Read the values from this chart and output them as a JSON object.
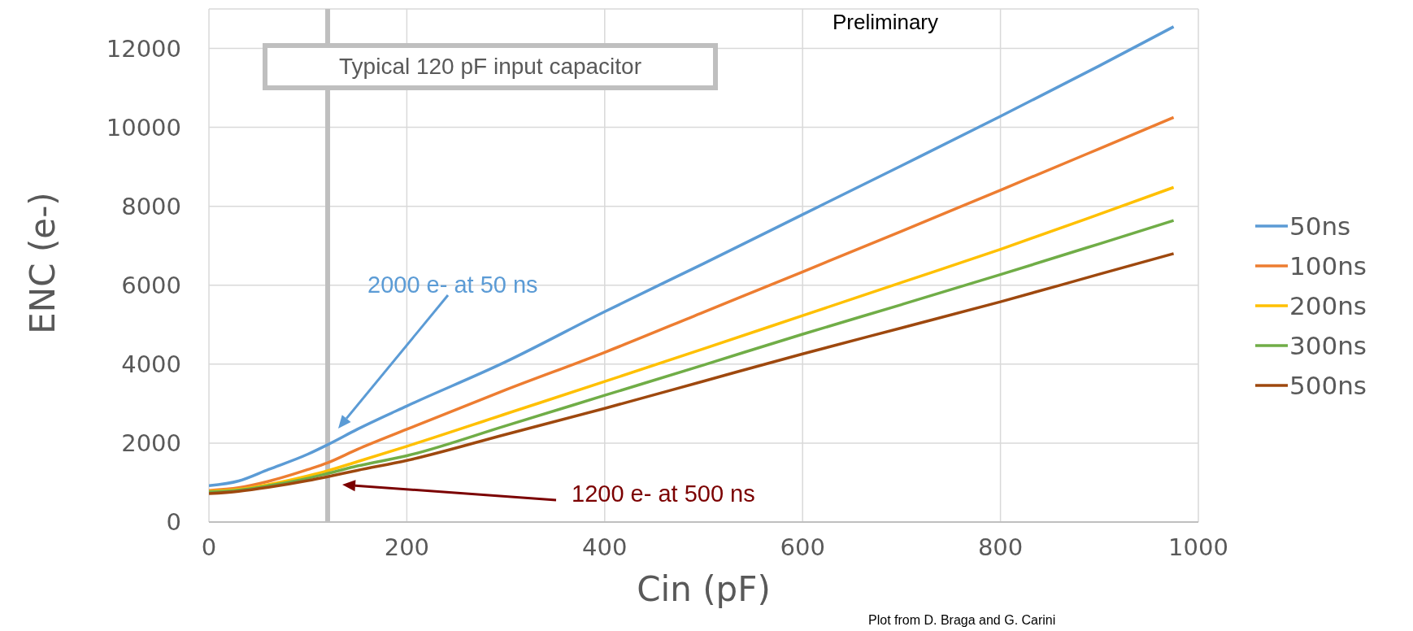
{
  "chart_data": {
    "type": "line",
    "xlabel": "Cin (pF)",
    "ylabel": "ENC (e-)",
    "x": [
      0,
      30,
      60,
      100,
      120,
      150,
      200,
      300,
      400,
      500,
      600,
      700,
      800,
      900,
      975
    ],
    "series": [
      {
        "name": "50ns",
        "color": "#5b9bd5",
        "values": [
          920,
          1040,
          1330,
          1720,
          1960,
          2350,
          2940,
          4060,
          5330,
          6550,
          7790,
          9030,
          10280,
          11560,
          12550
        ]
      },
      {
        "name": "100ns",
        "color": "#ed7d31",
        "values": [
          800,
          870,
          1030,
          1330,
          1500,
          1840,
          2350,
          3350,
          4300,
          5320,
          6340,
          7370,
          8410,
          9460,
          10250
        ]
      },
      {
        "name": "200ns",
        "color": "#ffc000",
        "values": [
          780,
          830,
          950,
          1170,
          1300,
          1530,
          1920,
          2740,
          3560,
          4390,
          5230,
          6070,
          6910,
          7800,
          8480
        ]
      },
      {
        "name": "300ns",
        "color": "#70ad47",
        "values": [
          760,
          810,
          920,
          1110,
          1230,
          1420,
          1680,
          2440,
          3210,
          3980,
          4760,
          5510,
          6270,
          7050,
          7640
        ]
      },
      {
        "name": "500ns",
        "color": "#9e480e",
        "values": [
          720,
          780,
          880,
          1050,
          1150,
          1310,
          1560,
          2220,
          2880,
          3570,
          4260,
          4920,
          5580,
          6280,
          6800
        ]
      }
    ],
    "xlim": [
      0,
      1000
    ],
    "xticks": [
      0,
      200,
      400,
      600,
      800,
      1000
    ],
    "ylim": [
      0,
      13000
    ],
    "yticks": [
      0,
      2000,
      4000,
      6000,
      8000,
      10000,
      12000
    ],
    "grid": true,
    "legend": "right",
    "marker": "none",
    "line_style": "solid",
    "ref_lines": [
      {
        "axis": "x",
        "value": 120,
        "label": "Typical 120 pF input capacitor",
        "color": "#bfbfbf"
      }
    ],
    "annotations": [
      "2000 e- at 50 ns",
      "1200 e- at 500 ns",
      "Preliminary",
      "Plot from D. Braga and G. Carini"
    ]
  }
}
